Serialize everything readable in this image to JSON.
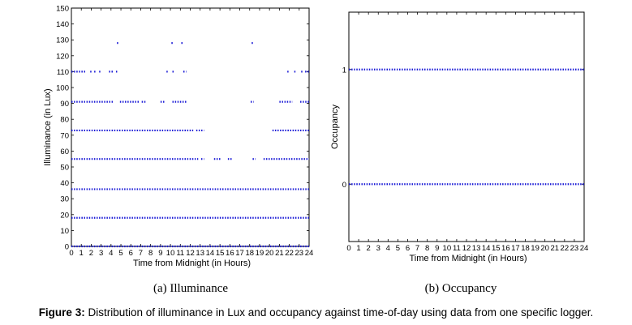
{
  "chart_data": [
    {
      "type": "scatter",
      "subcaption": "(a) Illuminance",
      "xlabel": "Time from Midnight (in Hours)",
      "ylabel": "Illuminance (in Lux)",
      "xlim": [
        0,
        24
      ],
      "ylim": [
        0,
        150
      ],
      "xticks": [
        "0",
        "1",
        "2",
        "3",
        "4",
        "5",
        "6",
        "7",
        "8",
        "9",
        "10",
        "11",
        "12",
        "13",
        "14",
        "15",
        "16",
        "17",
        "18",
        "19",
        "20",
        "21",
        "22",
        "23",
        "24"
      ],
      "yticks": [
        "0",
        "10",
        "20",
        "30",
        "40",
        "50",
        "60",
        "70",
        "80",
        "90",
        "100",
        "110",
        "120",
        "130",
        "140",
        "150"
      ],
      "color": "#1a1ad6",
      "series": [
        {
          "y": 0,
          "segments": [
            [
              0,
              24
            ]
          ]
        },
        {
          "y": 18,
          "segments": [
            [
              0,
              24
            ]
          ]
        },
        {
          "y": 36,
          "segments": [
            [
              0,
              24
            ]
          ]
        },
        {
          "y": 55,
          "segments": [
            [
              0,
              12.8
            ],
            [
              13.1,
              13.4
            ],
            [
              14.4,
              15.1
            ],
            [
              15.8,
              16.2
            ],
            [
              18.3,
              18.6
            ],
            [
              19.4,
              24
            ]
          ]
        },
        {
          "y": 73,
          "segments": [
            [
              0,
              12.3
            ],
            [
              12.6,
              13.4
            ],
            [
              20.3,
              24
            ]
          ]
        },
        {
          "y": 91,
          "segments": [
            [
              0,
              4.3
            ],
            [
              4.9,
              6.8
            ],
            [
              7.1,
              7.6
            ],
            [
              9.0,
              9.5
            ],
            [
              10.2,
              11.7
            ],
            [
              18.1,
              18.4
            ],
            [
              21.0,
              22.3
            ],
            [
              23.1,
              24
            ]
          ]
        },
        {
          "y": 110,
          "segments": [
            [
              0,
              1.5
            ],
            [
              1.9,
              2.0
            ],
            [
              2.3,
              2.5
            ],
            [
              2.8,
              3.0
            ],
            [
              3.8,
              4.2
            ],
            [
              4.5,
              4.7
            ],
            [
              9.6,
              9.8
            ],
            [
              10.2,
              10.4
            ],
            [
              11.3,
              11.6
            ],
            [
              21.8,
              22.0
            ],
            [
              22.5,
              22.7
            ],
            [
              23.2,
              23.4
            ],
            [
              23.6,
              24
            ]
          ]
        },
        {
          "y": 128,
          "segments": [
            [
              4.6,
              4.7
            ],
            [
              10.1,
              10.2
            ],
            [
              11.1,
              11.2
            ],
            [
              18.2,
              18.3
            ]
          ]
        }
      ]
    },
    {
      "type": "scatter",
      "subcaption": "(b) Occupancy",
      "xlabel": "Time from Midnight (in Hours)",
      "ylabel": "Occupancy",
      "xlim": [
        0,
        24
      ],
      "ylim": [
        -0.5,
        1.5
      ],
      "xticks": [
        "0",
        "1",
        "2",
        "3",
        "4",
        "5",
        "6",
        "7",
        "8",
        "9",
        "10",
        "11",
        "12",
        "13",
        "14",
        "15",
        "16",
        "17",
        "18",
        "19",
        "20",
        "21",
        "22",
        "23",
        "24"
      ],
      "yticks": [
        "0",
        "1"
      ],
      "color": "#1a1ad6",
      "series": [
        {
          "y": 1,
          "segments": [
            [
              0,
              24
            ]
          ]
        },
        {
          "y": 0,
          "segments": [
            [
              0,
              24
            ]
          ]
        }
      ]
    }
  ],
  "caption": {
    "label": "Figure 3:",
    "text": " Distribution of illuminance in Lux and occupancy against time-of-day using data from one specific logger."
  }
}
